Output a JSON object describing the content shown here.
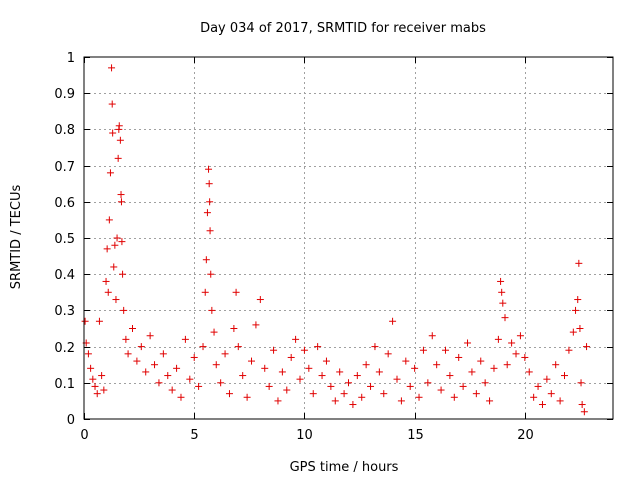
{
  "chart_data": {
    "type": "scatter",
    "title": "Day 034 of 2017, SRMTID for receiver mabs",
    "xlabel": "GPS time / hours",
    "ylabel": "SRMTID / TECUs",
    "xlim": [
      0,
      24
    ],
    "ylim": [
      0,
      1
    ],
    "x_ticks": [
      0,
      5,
      10,
      15,
      20
    ],
    "x_tick_labels": [
      "0",
      "5",
      "10",
      "15",
      "20"
    ],
    "y_ticks": [
      0,
      0.1,
      0.2,
      0.3,
      0.4,
      0.5,
      0.6,
      0.7,
      0.8,
      0.9,
      1
    ],
    "y_tick_labels": [
      "0",
      "0.1",
      "0.2",
      "0.3",
      "0.4",
      "0.5",
      "0.6",
      "0.7",
      "0.8",
      "0.9",
      "1"
    ],
    "grid": true,
    "marker": "+",
    "series": [
      {
        "name": "SRMTID",
        "color": "#e00000",
        "points": [
          [
            0.05,
            0.27
          ],
          [
            0.1,
            0.21
          ],
          [
            0.2,
            0.18
          ],
          [
            0.3,
            0.14
          ],
          [
            0.4,
            0.11
          ],
          [
            0.5,
            0.09
          ],
          [
            0.6,
            0.07
          ],
          [
            0.7,
            0.27
          ],
          [
            0.8,
            0.12
          ],
          [
            0.9,
            0.08
          ],
          [
            1.0,
            0.38
          ],
          [
            1.05,
            0.47
          ],
          [
            1.1,
            0.35
          ],
          [
            1.15,
            0.55
          ],
          [
            1.2,
            0.68
          ],
          [
            1.25,
            0.97
          ],
          [
            1.28,
            0.87
          ],
          [
            1.3,
            0.79
          ],
          [
            1.35,
            0.42
          ],
          [
            1.4,
            0.48
          ],
          [
            1.45,
            0.33
          ],
          [
            1.5,
            0.5
          ],
          [
            1.55,
            0.72
          ],
          [
            1.58,
            0.8
          ],
          [
            1.6,
            0.81
          ],
          [
            1.65,
            0.77
          ],
          [
            1.68,
            0.62
          ],
          [
            1.7,
            0.6
          ],
          [
            1.72,
            0.49
          ],
          [
            1.75,
            0.4
          ],
          [
            1.8,
            0.3
          ],
          [
            1.9,
            0.22
          ],
          [
            2.0,
            0.18
          ],
          [
            2.2,
            0.25
          ],
          [
            2.4,
            0.16
          ],
          [
            2.6,
            0.2
          ],
          [
            2.8,
            0.13
          ],
          [
            3.0,
            0.23
          ],
          [
            3.2,
            0.15
          ],
          [
            3.4,
            0.1
          ],
          [
            3.6,
            0.18
          ],
          [
            3.8,
            0.12
          ],
          [
            4.0,
            0.08
          ],
          [
            4.2,
            0.14
          ],
          [
            4.4,
            0.06
          ],
          [
            4.6,
            0.22
          ],
          [
            4.8,
            0.11
          ],
          [
            5.0,
            0.17
          ],
          [
            5.2,
            0.09
          ],
          [
            5.4,
            0.2
          ],
          [
            5.5,
            0.35
          ],
          [
            5.55,
            0.44
          ],
          [
            5.6,
            0.57
          ],
          [
            5.65,
            0.69
          ],
          [
            5.68,
            0.65
          ],
          [
            5.7,
            0.6
          ],
          [
            5.72,
            0.52
          ],
          [
            5.75,
            0.4
          ],
          [
            5.8,
            0.3
          ],
          [
            5.9,
            0.24
          ],
          [
            6.0,
            0.15
          ],
          [
            6.2,
            0.1
          ],
          [
            6.4,
            0.18
          ],
          [
            6.6,
            0.07
          ],
          [
            6.8,
            0.25
          ],
          [
            6.9,
            0.35
          ],
          [
            7.0,
            0.2
          ],
          [
            7.2,
            0.12
          ],
          [
            7.4,
            0.06
          ],
          [
            7.6,
            0.16
          ],
          [
            7.8,
            0.26
          ],
          [
            8.0,
            0.33
          ],
          [
            8.2,
            0.14
          ],
          [
            8.4,
            0.09
          ],
          [
            8.6,
            0.19
          ],
          [
            8.8,
            0.05
          ],
          [
            9.0,
            0.13
          ],
          [
            9.2,
            0.08
          ],
          [
            9.4,
            0.17
          ],
          [
            9.6,
            0.22
          ],
          [
            9.8,
            0.11
          ],
          [
            10.0,
            0.19
          ],
          [
            10.2,
            0.14
          ],
          [
            10.4,
            0.07
          ],
          [
            10.6,
            0.2
          ],
          [
            10.8,
            0.12
          ],
          [
            11.0,
            0.16
          ],
          [
            11.2,
            0.09
          ],
          [
            11.4,
            0.05
          ],
          [
            11.6,
            0.13
          ],
          [
            11.8,
            0.07
          ],
          [
            12.0,
            0.1
          ],
          [
            12.2,
            0.04
          ],
          [
            12.4,
            0.12
          ],
          [
            12.6,
            0.06
          ],
          [
            12.8,
            0.15
          ],
          [
            13.0,
            0.09
          ],
          [
            13.2,
            0.2
          ],
          [
            13.4,
            0.13
          ],
          [
            13.6,
            0.07
          ],
          [
            13.8,
            0.18
          ],
          [
            14.0,
            0.27
          ],
          [
            14.2,
            0.11
          ],
          [
            14.4,
            0.05
          ],
          [
            14.6,
            0.16
          ],
          [
            14.8,
            0.09
          ],
          [
            15.0,
            0.14
          ],
          [
            15.2,
            0.06
          ],
          [
            15.4,
            0.19
          ],
          [
            15.6,
            0.1
          ],
          [
            15.8,
            0.23
          ],
          [
            16.0,
            0.15
          ],
          [
            16.2,
            0.08
          ],
          [
            16.4,
            0.19
          ],
          [
            16.6,
            0.12
          ],
          [
            16.8,
            0.06
          ],
          [
            17.0,
            0.17
          ],
          [
            17.2,
            0.09
          ],
          [
            17.4,
            0.21
          ],
          [
            17.6,
            0.13
          ],
          [
            17.8,
            0.07
          ],
          [
            18.0,
            0.16
          ],
          [
            18.2,
            0.1
          ],
          [
            18.4,
            0.05
          ],
          [
            18.6,
            0.14
          ],
          [
            18.8,
            0.22
          ],
          [
            18.9,
            0.38
          ],
          [
            18.95,
            0.35
          ],
          [
            19.0,
            0.32
          ],
          [
            19.1,
            0.28
          ],
          [
            19.2,
            0.15
          ],
          [
            19.4,
            0.21
          ],
          [
            19.6,
            0.18
          ],
          [
            19.8,
            0.23
          ],
          [
            20.0,
            0.17
          ],
          [
            20.2,
            0.13
          ],
          [
            20.4,
            0.06
          ],
          [
            20.6,
            0.09
          ],
          [
            20.8,
            0.04
          ],
          [
            21.0,
            0.11
          ],
          [
            21.2,
            0.07
          ],
          [
            21.4,
            0.15
          ],
          [
            21.6,
            0.05
          ],
          [
            21.8,
            0.12
          ],
          [
            22.0,
            0.19
          ],
          [
            22.2,
            0.24
          ],
          [
            22.3,
            0.3
          ],
          [
            22.4,
            0.33
          ],
          [
            22.45,
            0.43
          ],
          [
            22.5,
            0.25
          ],
          [
            22.55,
            0.1
          ],
          [
            22.6,
            0.04
          ],
          [
            22.7,
            0.02
          ],
          [
            22.8,
            0.2
          ]
        ]
      }
    ]
  }
}
